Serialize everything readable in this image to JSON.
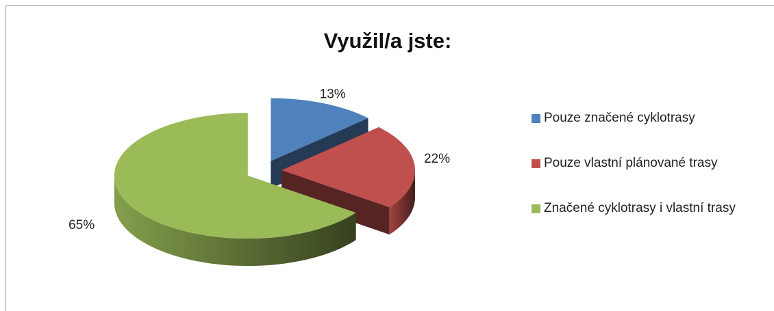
{
  "chart_data": {
    "type": "pie3d",
    "title": "Využil/a jste:",
    "categories": [
      "Pouze značené cyklotrasy",
      "Pouze vlastní plánované trasy",
      "Značené cyklotrasy i vlastní trasy"
    ],
    "values": [
      13,
      22,
      65
    ],
    "value_labels": [
      "13%",
      "22%",
      "65%"
    ],
    "colors": [
      "#4f81bd",
      "#c0504d",
      "#9bbb59"
    ],
    "legend": "right"
  }
}
